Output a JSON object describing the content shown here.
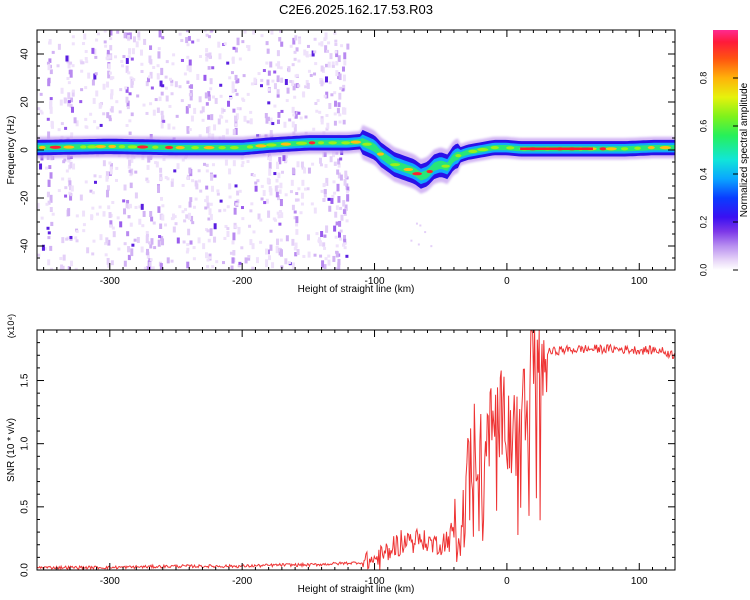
{
  "title": "C2E6.2025.162.17.53.R03",
  "chart_data": [
    {
      "type": "heatmap",
      "xlabel": "Height of straight line (km)",
      "ylabel": "Frequency (Hz)",
      "xlim": [
        -355,
        127
      ],
      "ylim": [
        -50,
        50
      ],
      "xticks": [
        -300,
        -200,
        -100,
        0,
        100
      ],
      "yticks": [
        -40,
        -20,
        0,
        20,
        40
      ],
      "colorbar": {
        "label": "Normalized spectral amplitude",
        "range": [
          0,
          1
        ],
        "ticks": [
          "0.0",
          "0.2",
          "0.4",
          "0.6",
          "0.8"
        ],
        "tick_values": [
          0,
          0.2,
          0.4,
          0.6,
          0.8
        ]
      },
      "ridge": {
        "x": [
          -355,
          -300,
          -250,
          -200,
          -180,
          -150,
          -120,
          -110,
          -100,
          -95,
          -85,
          -75,
          -70,
          -65,
          -60,
          -55,
          -50,
          -45,
          -40,
          -30,
          -20,
          -10,
          0,
          10,
          30,
          60,
          90,
          110,
          127
        ],
        "freq": [
          1,
          1.5,
          1,
          1,
          2,
          3,
          3,
          3.5,
          1,
          -2,
          -6,
          -8,
          -9,
          -11,
          -10,
          -7,
          -6,
          -7,
          -3,
          -1,
          0,
          1,
          1,
          0.5,
          0.5,
          0.5,
          0.5,
          1,
          1
        ]
      },
      "noise_region_x": [
        -355,
        -120
      ]
    },
    {
      "type": "line",
      "xlabel": "Height of straight line (km)",
      "ylabel": "SNR (10 * v/v)",
      "y_scale_note": "(x10⁴)",
      "xlim": [
        -355,
        127
      ],
      "ylim": [
        0,
        1.9
      ],
      "xticks": [
        -300,
        -200,
        -100,
        0,
        100
      ],
      "yticks": [
        0.0,
        0.5,
        1.0,
        1.5
      ],
      "ytick_labels": [
        "0.0",
        "0.5",
        "1.0",
        "1.5"
      ],
      "series": [
        {
          "color": "#ee3333",
          "x": [
            -355,
            -300,
            -250,
            -200,
            -170,
            -150,
            -130,
            -110,
            -100,
            -90,
            -80,
            -70,
            -60,
            -50,
            -45,
            -40,
            -35,
            -30,
            -25,
            -20,
            -15,
            -10,
            -5,
            0,
            5,
            10,
            15,
            20,
            25,
            30,
            40,
            60,
            80,
            100,
            115,
            127
          ],
          "y": [
            0.02,
            0.02,
            0.03,
            0.03,
            0.04,
            0.04,
            0.05,
            0.06,
            0.08,
            0.14,
            0.22,
            0.25,
            0.22,
            0.2,
            0.24,
            0.3,
            0.5,
            0.9,
            1.05,
            0.9,
            1.1,
            1.15,
            1.25,
            1.2,
            1.3,
            1.35,
            1.55,
            1.62,
            1.68,
            1.72,
            1.74,
            1.75,
            1.75,
            1.74,
            1.74,
            1.7
          ]
        }
      ]
    }
  ]
}
